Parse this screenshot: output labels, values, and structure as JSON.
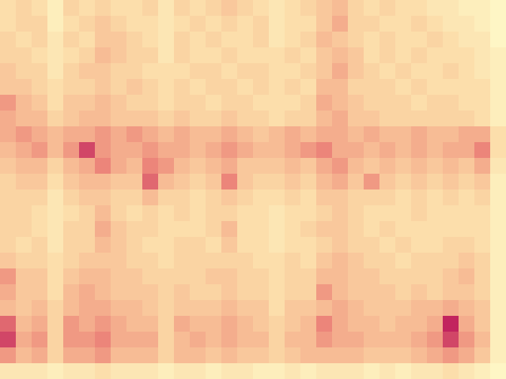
{
  "chart_data": {
    "type": "heatmap",
    "tick_labels": false,
    "grid": false,
    "cells": [
      [
        0.3,
        0.35,
        0.3,
        0.2,
        0.35,
        0.3,
        0.35,
        0.3,
        0.3,
        0.35,
        0.25,
        0.35,
        0.3,
        0.35,
        0.4,
        0.35,
        0.3,
        0.25,
        0.3,
        0.35,
        0.4,
        0.45,
        0.35,
        0.3,
        0.35,
        0.3,
        0.3,
        0.25,
        0.25,
        0.2,
        0.2,
        0.15
      ],
      [
        0.3,
        0.35,
        0.35,
        0.2,
        0.3,
        0.35,
        0.4,
        0.35,
        0.3,
        0.3,
        0.25,
        0.3,
        0.35,
        0.3,
        0.35,
        0.3,
        0.35,
        0.25,
        0.3,
        0.3,
        0.4,
        0.5,
        0.35,
        0.35,
        0.3,
        0.3,
        0.35,
        0.3,
        0.25,
        0.25,
        0.2,
        0.15
      ],
      [
        0.35,
        0.3,
        0.35,
        0.25,
        0.35,
        0.3,
        0.4,
        0.4,
        0.35,
        0.3,
        0.25,
        0.35,
        0.3,
        0.35,
        0.3,
        0.3,
        0.35,
        0.25,
        0.3,
        0.35,
        0.45,
        0.4,
        0.35,
        0.3,
        0.35,
        0.3,
        0.3,
        0.35,
        0.3,
        0.25,
        0.25,
        0.15
      ],
      [
        0.35,
        0.35,
        0.3,
        0.25,
        0.3,
        0.35,
        0.45,
        0.4,
        0.35,
        0.35,
        0.25,
        0.35,
        0.3,
        0.3,
        0.35,
        0.3,
        0.3,
        0.3,
        0.35,
        0.3,
        0.4,
        0.45,
        0.4,
        0.3,
        0.35,
        0.3,
        0.35,
        0.3,
        0.3,
        0.3,
        0.25,
        0.2
      ],
      [
        0.4,
        0.35,
        0.35,
        0.25,
        0.35,
        0.4,
        0.4,
        0.35,
        0.35,
        0.3,
        0.3,
        0.3,
        0.35,
        0.35,
        0.3,
        0.35,
        0.35,
        0.3,
        0.3,
        0.35,
        0.4,
        0.5,
        0.4,
        0.35,
        0.3,
        0.35,
        0.3,
        0.3,
        0.35,
        0.3,
        0.25,
        0.2
      ],
      [
        0.4,
        0.4,
        0.35,
        0.3,
        0.35,
        0.35,
        0.4,
        0.35,
        0.4,
        0.35,
        0.3,
        0.35,
        0.3,
        0.35,
        0.35,
        0.3,
        0.35,
        0.3,
        0.35,
        0.3,
        0.45,
        0.45,
        0.35,
        0.35,
        0.35,
        0.3,
        0.35,
        0.3,
        0.3,
        0.3,
        0.3,
        0.2
      ],
      [
        0.55,
        0.45,
        0.4,
        0.3,
        0.4,
        0.4,
        0.45,
        0.4,
        0.35,
        0.35,
        0.3,
        0.35,
        0.35,
        0.3,
        0.35,
        0.35,
        0.3,
        0.3,
        0.3,
        0.35,
        0.5,
        0.45,
        0.4,
        0.35,
        0.35,
        0.35,
        0.3,
        0.35,
        0.35,
        0.3,
        0.3,
        0.2
      ],
      [
        0.5,
        0.45,
        0.45,
        0.35,
        0.4,
        0.45,
        0.45,
        0.4,
        0.4,
        0.4,
        0.35,
        0.4,
        0.35,
        0.35,
        0.4,
        0.35,
        0.35,
        0.3,
        0.35,
        0.35,
        0.45,
        0.5,
        0.4,
        0.4,
        0.35,
        0.35,
        0.35,
        0.35,
        0.35,
        0.35,
        0.3,
        0.2
      ],
      [
        0.5,
        0.55,
        0.5,
        0.45,
        0.5,
        0.5,
        0.55,
        0.5,
        0.55,
        0.5,
        0.45,
        0.5,
        0.45,
        0.45,
        0.5,
        0.45,
        0.4,
        0.45,
        0.5,
        0.45,
        0.5,
        0.5,
        0.45,
        0.5,
        0.45,
        0.45,
        0.5,
        0.45,
        0.45,
        0.5,
        0.5,
        0.3
      ],
      [
        0.45,
        0.5,
        0.55,
        0.45,
        0.55,
        0.7,
        0.55,
        0.5,
        0.5,
        0.55,
        0.5,
        0.5,
        0.45,
        0.5,
        0.55,
        0.5,
        0.45,
        0.45,
        0.5,
        0.55,
        0.6,
        0.5,
        0.5,
        0.45,
        0.5,
        0.45,
        0.5,
        0.45,
        0.5,
        0.5,
        0.6,
        0.3
      ],
      [
        0.4,
        0.45,
        0.45,
        0.35,
        0.45,
        0.5,
        0.6,
        0.5,
        0.45,
        0.6,
        0.55,
        0.45,
        0.4,
        0.45,
        0.5,
        0.4,
        0.4,
        0.4,
        0.45,
        0.4,
        0.5,
        0.55,
        0.45,
        0.4,
        0.45,
        0.4,
        0.45,
        0.4,
        0.45,
        0.4,
        0.5,
        0.25
      ],
      [
        0.35,
        0.4,
        0.4,
        0.3,
        0.4,
        0.45,
        0.45,
        0.4,
        0.4,
        0.65,
        0.45,
        0.4,
        0.35,
        0.4,
        0.6,
        0.4,
        0.35,
        0.35,
        0.4,
        0.35,
        0.45,
        0.5,
        0.4,
        0.55,
        0.4,
        0.35,
        0.4,
        0.35,
        0.4,
        0.35,
        0.4,
        0.2
      ],
      [
        0.35,
        0.35,
        0.35,
        0.25,
        0.35,
        0.4,
        0.4,
        0.35,
        0.35,
        0.45,
        0.35,
        0.35,
        0.3,
        0.35,
        0.4,
        0.35,
        0.3,
        0.3,
        0.35,
        0.3,
        0.4,
        0.4,
        0.35,
        0.35,
        0.35,
        0.3,
        0.35,
        0.3,
        0.35,
        0.3,
        0.35,
        0.2
      ],
      [
        0.35,
        0.35,
        0.3,
        0.25,
        0.3,
        0.35,
        0.45,
        0.35,
        0.3,
        0.35,
        0.3,
        0.35,
        0.3,
        0.35,
        0.35,
        0.3,
        0.3,
        0.25,
        0.3,
        0.3,
        0.35,
        0.4,
        0.35,
        0.3,
        0.3,
        0.3,
        0.35,
        0.3,
        0.3,
        0.3,
        0.3,
        0.2
      ],
      [
        0.35,
        0.35,
        0.3,
        0.25,
        0.35,
        0.35,
        0.5,
        0.4,
        0.35,
        0.35,
        0.3,
        0.3,
        0.3,
        0.35,
        0.45,
        0.3,
        0.3,
        0.25,
        0.3,
        0.35,
        0.4,
        0.4,
        0.35,
        0.3,
        0.35,
        0.3,
        0.3,
        0.3,
        0.3,
        0.3,
        0.3,
        0.2
      ],
      [
        0.35,
        0.3,
        0.35,
        0.25,
        0.35,
        0.35,
        0.45,
        0.4,
        0.35,
        0.3,
        0.3,
        0.35,
        0.35,
        0.3,
        0.4,
        0.3,
        0.3,
        0.25,
        0.3,
        0.3,
        0.35,
        0.4,
        0.35,
        0.35,
        0.3,
        0.35,
        0.3,
        0.3,
        0.35,
        0.35,
        0.3,
        0.2
      ],
      [
        0.4,
        0.35,
        0.35,
        0.3,
        0.35,
        0.4,
        0.4,
        0.4,
        0.35,
        0.35,
        0.3,
        0.35,
        0.35,
        0.35,
        0.35,
        0.35,
        0.3,
        0.3,
        0.35,
        0.3,
        0.4,
        0.45,
        0.4,
        0.35,
        0.35,
        0.3,
        0.35,
        0.35,
        0.35,
        0.4,
        0.35,
        0.2
      ],
      [
        0.55,
        0.4,
        0.4,
        0.3,
        0.4,
        0.45,
        0.45,
        0.4,
        0.4,
        0.35,
        0.35,
        0.35,
        0.35,
        0.4,
        0.4,
        0.35,
        0.35,
        0.3,
        0.35,
        0.35,
        0.45,
        0.45,
        0.4,
        0.4,
        0.35,
        0.35,
        0.35,
        0.35,
        0.4,
        0.45,
        0.35,
        0.2
      ],
      [
        0.5,
        0.4,
        0.4,
        0.3,
        0.45,
        0.5,
        0.45,
        0.4,
        0.4,
        0.4,
        0.35,
        0.4,
        0.35,
        0.35,
        0.4,
        0.35,
        0.35,
        0.3,
        0.35,
        0.35,
        0.55,
        0.45,
        0.4,
        0.4,
        0.4,
        0.35,
        0.4,
        0.35,
        0.4,
        0.4,
        0.35,
        0.2
      ],
      [
        0.45,
        0.4,
        0.45,
        0.35,
        0.45,
        0.5,
        0.5,
        0.45,
        0.45,
        0.4,
        0.35,
        0.4,
        0.4,
        0.4,
        0.45,
        0.4,
        0.4,
        0.3,
        0.4,
        0.4,
        0.45,
        0.5,
        0.45,
        0.4,
        0.4,
        0.4,
        0.45,
        0.45,
        0.5,
        0.45,
        0.4,
        0.2
      ],
      [
        0.65,
        0.45,
        0.5,
        0.35,
        0.55,
        0.5,
        0.55,
        0.5,
        0.45,
        0.45,
        0.35,
        0.5,
        0.45,
        0.45,
        0.5,
        0.45,
        0.4,
        0.35,
        0.4,
        0.45,
        0.6,
        0.5,
        0.45,
        0.45,
        0.4,
        0.45,
        0.45,
        0.5,
        0.75,
        0.5,
        0.4,
        0.2
      ],
      [
        0.7,
        0.5,
        0.55,
        0.35,
        0.55,
        0.55,
        0.6,
        0.5,
        0.5,
        0.5,
        0.35,
        0.45,
        0.5,
        0.45,
        0.5,
        0.45,
        0.45,
        0.35,
        0.45,
        0.45,
        0.55,
        0.5,
        0.5,
        0.45,
        0.45,
        0.45,
        0.5,
        0.55,
        0.7,
        0.55,
        0.45,
        0.2
      ],
      [
        0.55,
        0.45,
        0.5,
        0.35,
        0.5,
        0.5,
        0.55,
        0.45,
        0.45,
        0.45,
        0.35,
        0.45,
        0.45,
        0.4,
        0.45,
        0.4,
        0.4,
        0.35,
        0.4,
        0.45,
        0.45,
        0.45,
        0.45,
        0.4,
        0.4,
        0.4,
        0.45,
        0.5,
        0.55,
        0.5,
        0.4,
        0.2
      ],
      [
        0.25,
        0.25,
        0.25,
        0.2,
        0.25,
        0.25,
        0.3,
        0.25,
        0.25,
        0.25,
        0.2,
        0.25,
        0.25,
        0.2,
        0.25,
        0.25,
        0.2,
        0.2,
        0.25,
        0.2,
        0.25,
        0.25,
        0.25,
        0.2,
        0.25,
        0.2,
        0.25,
        0.25,
        0.3,
        0.25,
        0.2,
        0.15
      ]
    ]
  }
}
